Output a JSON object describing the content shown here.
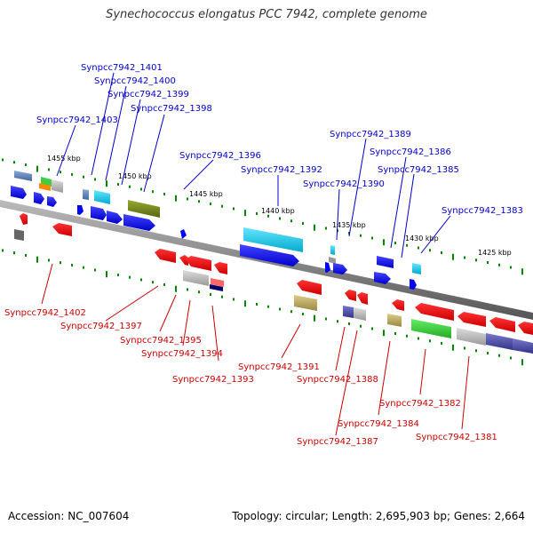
{
  "title": "Synechococcus elongatus PCC 7942, complete genome",
  "footer": {
    "accession": "Accession: NC_007604",
    "summary": "Topology: circular; Length: 2,695,903 bp; Genes: 2,664"
  },
  "scale_labels": [
    "1455 kbp",
    "1450 kbp",
    "1445 kbp",
    "1440 kbp",
    "1435 kbp",
    "1430 kbp",
    "1425 kbp"
  ],
  "top_labels": [
    "Synpcc7942_1401",
    "Synpcc7942_1400",
    "Synpcc7942_1399",
    "Synpcc7942_1398",
    "Synpcc7942_1403",
    "Synpcc7942_1396",
    "Synpcc7942_1392",
    "Synpcc7942_1389",
    "Synpcc7942_1390",
    "Synpcc7942_1386",
    "Synpcc7942_1385",
    "Synpcc7942_1383"
  ],
  "bottom_labels": [
    "Synpcc7942_1402",
    "Synpcc7942_1397",
    "Synpcc7942_1395",
    "Synpcc7942_1394",
    "Synpcc7942_1393",
    "Synpcc7942_1391",
    "Synpcc7942_1388",
    "Synpcc7942_1382",
    "Synpcc7942_1384",
    "Synpcc7942_1387",
    "Synpcc7942_1381"
  ],
  "colors": {
    "top_label": "#0000cc",
    "bottom_label": "#cc0000",
    "forward_gene": "#0000ff",
    "reverse_gene": "#ff0000",
    "backbone": "#808080"
  }
}
